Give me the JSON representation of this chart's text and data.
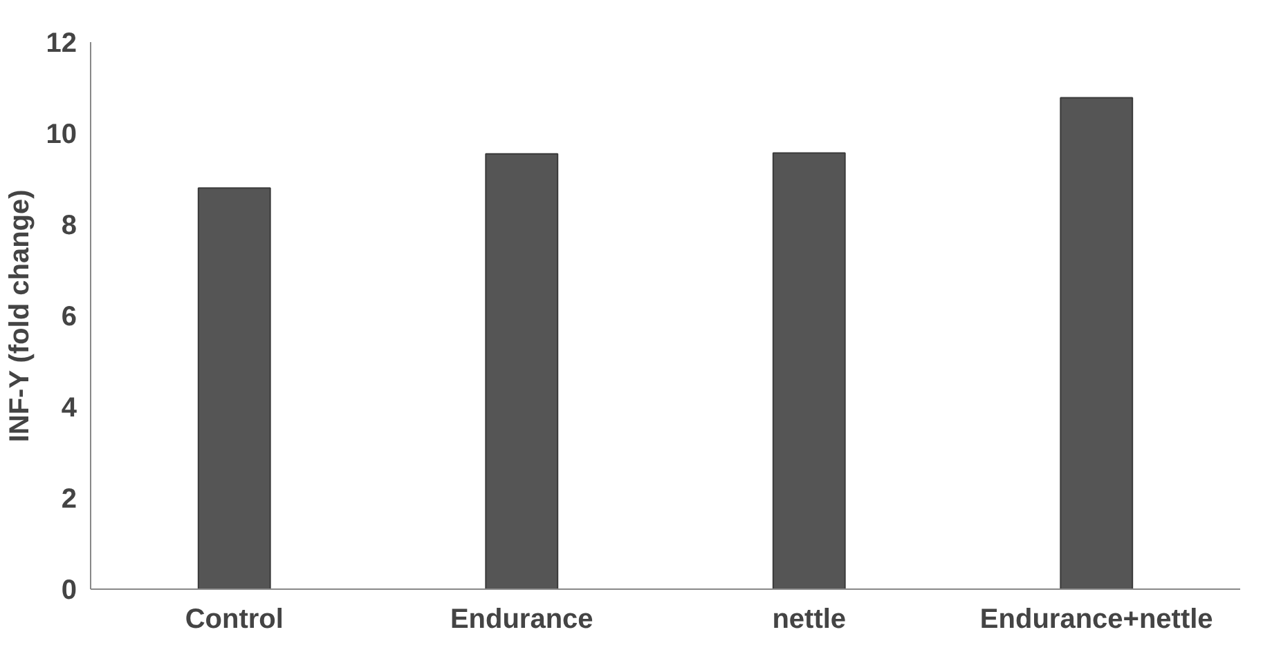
{
  "chart_data": {
    "type": "bar",
    "ylabel": "INF-Y (fold change)",
    "categories": [
      "Control",
      "Endurance",
      "nettle",
      "Endurance+nettle"
    ],
    "values": [
      8.8,
      9.55,
      9.57,
      10.78
    ],
    "color": "#555555",
    "ylim": [
      0,
      12
    ],
    "yticks": [
      0,
      2,
      4,
      6,
      8,
      10,
      12
    ],
    "grid": false
  }
}
